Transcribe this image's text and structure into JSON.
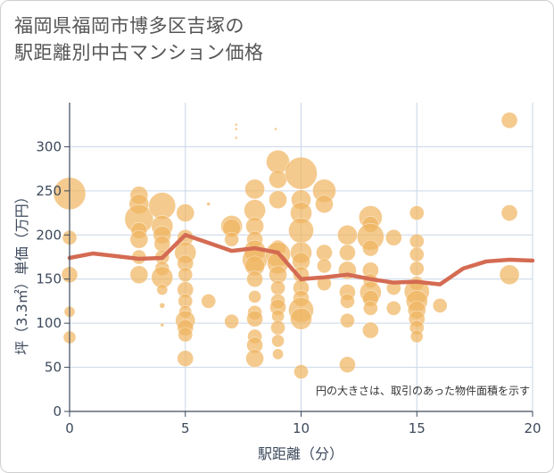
{
  "title_line1": "福岡県福岡市博多区吉塚の",
  "title_line2": "駅距離別中古マンション価格",
  "chart_data": {
    "type": "scatter",
    "xlabel": "駅距離（分）",
    "ylabel": "坪（3.3㎡）単価（万円）",
    "note": "円の大きさは、取引のあった物件面積を示す",
    "xlim": [
      0,
      20
    ],
    "ylim": [
      0,
      350
    ],
    "xticks": [
      0,
      5,
      10,
      15,
      20
    ],
    "yticks": [
      0,
      50,
      100,
      150,
      200,
      250,
      300
    ],
    "grid": true,
    "colors": {
      "bubble": "#f0b562",
      "line": "#d46b52",
      "grid": "#c9d6e6",
      "axis": "#3d4a5c"
    },
    "line": {
      "name": "",
      "x": [
        0,
        1,
        2,
        3,
        4,
        5,
        6,
        7,
        8,
        9,
        10,
        11,
        12,
        13,
        14,
        15,
        16,
        17,
        18,
        19,
        20
      ],
      "y": [
        174,
        179,
        176,
        173,
        174,
        200,
        191,
        182,
        185,
        180,
        150,
        152,
        155,
        150,
        146,
        147,
        144,
        162,
        170,
        172,
        171
      ]
    },
    "points": [
      {
        "x": 0,
        "y": 247,
        "s": 18
      },
      {
        "x": 0,
        "y": 197,
        "s": 8
      },
      {
        "x": 0,
        "y": 155,
        "s": 9
      },
      {
        "x": 0,
        "y": 113,
        "s": 6
      },
      {
        "x": 0,
        "y": 84,
        "s": 7
      },
      {
        "x": 3,
        "y": 245,
        "s": 10
      },
      {
        "x": 3,
        "y": 235,
        "s": 11
      },
      {
        "x": 3,
        "y": 218,
        "s": 16
      },
      {
        "x": 3,
        "y": 205,
        "s": 9
      },
      {
        "x": 3,
        "y": 195,
        "s": 10
      },
      {
        "x": 3,
        "y": 175,
        "s": 8
      },
      {
        "x": 3,
        "y": 155,
        "s": 10
      },
      {
        "x": 4,
        "y": 233,
        "s": 15
      },
      {
        "x": 4,
        "y": 210,
        "s": 12
      },
      {
        "x": 4,
        "y": 200,
        "s": 10
      },
      {
        "x": 4,
        "y": 190,
        "s": 9
      },
      {
        "x": 4,
        "y": 175,
        "s": 8
      },
      {
        "x": 4,
        "y": 162,
        "s": 8
      },
      {
        "x": 4,
        "y": 152,
        "s": 12
      },
      {
        "x": 4,
        "y": 138,
        "s": 6
      },
      {
        "x": 4,
        "y": 120,
        "s": 3
      },
      {
        "x": 4,
        "y": 98,
        "s": 2
      },
      {
        "x": 5,
        "y": 225,
        "s": 10
      },
      {
        "x": 5,
        "y": 197,
        "s": 9
      },
      {
        "x": 5,
        "y": 180,
        "s": 12
      },
      {
        "x": 5,
        "y": 168,
        "s": 9
      },
      {
        "x": 5,
        "y": 155,
        "s": 8
      },
      {
        "x": 5,
        "y": 138,
        "s": 9
      },
      {
        "x": 5,
        "y": 125,
        "s": 8
      },
      {
        "x": 5,
        "y": 113,
        "s": 7
      },
      {
        "x": 5,
        "y": 103,
        "s": 11
      },
      {
        "x": 5,
        "y": 95,
        "s": 9
      },
      {
        "x": 5,
        "y": 87,
        "s": 8
      },
      {
        "x": 5,
        "y": 60,
        "s": 9
      },
      {
        "x": 6,
        "y": 125,
        "s": 8
      },
      {
        "x": 6,
        "y": 235,
        "s": 2
      },
      {
        "x": 7,
        "y": 210,
        "s": 12
      },
      {
        "x": 7,
        "y": 208,
        "s": 10
      },
      {
        "x": 7,
        "y": 195,
        "s": 8
      },
      {
        "x": 7,
        "y": 102,
        "s": 8
      },
      {
        "x": 7.2,
        "y": 325,
        "s": 1.5
      },
      {
        "x": 7.2,
        "y": 320,
        "s": 1.5
      },
      {
        "x": 7.2,
        "y": 310,
        "s": 1.5
      },
      {
        "x": 8,
        "y": 252,
        "s": 11
      },
      {
        "x": 8,
        "y": 228,
        "s": 12
      },
      {
        "x": 8,
        "y": 210,
        "s": 10
      },
      {
        "x": 8,
        "y": 195,
        "s": 9
      },
      {
        "x": 8,
        "y": 182,
        "s": 12
      },
      {
        "x": 8,
        "y": 172,
        "s": 14
      },
      {
        "x": 8,
        "y": 165,
        "s": 11
      },
      {
        "x": 8,
        "y": 150,
        "s": 9
      },
      {
        "x": 8,
        "y": 130,
        "s": 7
      },
      {
        "x": 8,
        "y": 112,
        "s": 8
      },
      {
        "x": 8,
        "y": 105,
        "s": 9
      },
      {
        "x": 8,
        "y": 85,
        "s": 8
      },
      {
        "x": 8,
        "y": 75,
        "s": 9
      },
      {
        "x": 8,
        "y": 60,
        "s": 10
      },
      {
        "x": 9,
        "y": 283,
        "s": 13
      },
      {
        "x": 9,
        "y": 263,
        "s": 10
      },
      {
        "x": 9,
        "y": 240,
        "s": 10
      },
      {
        "x": 9,
        "y": 185,
        "s": 9
      },
      {
        "x": 9,
        "y": 178,
        "s": 14
      },
      {
        "x": 9,
        "y": 168,
        "s": 12
      },
      {
        "x": 9,
        "y": 155,
        "s": 10
      },
      {
        "x": 9,
        "y": 140,
        "s": 8
      },
      {
        "x": 9,
        "y": 125,
        "s": 8
      },
      {
        "x": 9,
        "y": 118,
        "s": 9
      },
      {
        "x": 9,
        "y": 108,
        "s": 7
      },
      {
        "x": 9,
        "y": 95,
        "s": 8
      },
      {
        "x": 9,
        "y": 80,
        "s": 7
      },
      {
        "x": 9,
        "y": 65,
        "s": 6
      },
      {
        "x": 8.9,
        "y": 320,
        "s": 1.5
      },
      {
        "x": 10,
        "y": 270,
        "s": 18
      },
      {
        "x": 10,
        "y": 240,
        "s": 11
      },
      {
        "x": 10,
        "y": 225,
        "s": 12
      },
      {
        "x": 10,
        "y": 205,
        "s": 14
      },
      {
        "x": 10,
        "y": 180,
        "s": 12
      },
      {
        "x": 10,
        "y": 170,
        "s": 10
      },
      {
        "x": 10,
        "y": 155,
        "s": 9
      },
      {
        "x": 10,
        "y": 140,
        "s": 9
      },
      {
        "x": 10,
        "y": 128,
        "s": 9
      },
      {
        "x": 10,
        "y": 115,
        "s": 14
      },
      {
        "x": 10,
        "y": 105,
        "s": 12
      },
      {
        "x": 10,
        "y": 45,
        "s": 8
      },
      {
        "x": 11,
        "y": 250,
        "s": 13
      },
      {
        "x": 11,
        "y": 235,
        "s": 10
      },
      {
        "x": 11,
        "y": 180,
        "s": 9
      },
      {
        "x": 11,
        "y": 165,
        "s": 8
      },
      {
        "x": 11,
        "y": 145,
        "s": 8
      },
      {
        "x": 12,
        "y": 200,
        "s": 11
      },
      {
        "x": 12,
        "y": 180,
        "s": 9
      },
      {
        "x": 12,
        "y": 160,
        "s": 10
      },
      {
        "x": 12,
        "y": 135,
        "s": 9
      },
      {
        "x": 12,
        "y": 125,
        "s": 8
      },
      {
        "x": 12,
        "y": 103,
        "s": 8
      },
      {
        "x": 12,
        "y": 53,
        "s": 9
      },
      {
        "x": 13,
        "y": 220,
        "s": 13
      },
      {
        "x": 13,
        "y": 212,
        "s": 9
      },
      {
        "x": 13,
        "y": 198,
        "s": 15
      },
      {
        "x": 13,
        "y": 185,
        "s": 9
      },
      {
        "x": 13,
        "y": 160,
        "s": 9
      },
      {
        "x": 13,
        "y": 148,
        "s": 8
      },
      {
        "x": 13,
        "y": 135,
        "s": 12
      },
      {
        "x": 13,
        "y": 128,
        "s": 9
      },
      {
        "x": 13,
        "y": 117,
        "s": 8
      },
      {
        "x": 13,
        "y": 92,
        "s": 9
      },
      {
        "x": 14,
        "y": 197,
        "s": 9
      },
      {
        "x": 14,
        "y": 140,
        "s": 8
      },
      {
        "x": 14,
        "y": 117,
        "s": 8
      },
      {
        "x": 15,
        "y": 225,
        "s": 8
      },
      {
        "x": 15,
        "y": 193,
        "s": 8
      },
      {
        "x": 15,
        "y": 178,
        "s": 8
      },
      {
        "x": 15,
        "y": 162,
        "s": 8
      },
      {
        "x": 15,
        "y": 145,
        "s": 8
      },
      {
        "x": 15,
        "y": 136,
        "s": 14
      },
      {
        "x": 15,
        "y": 125,
        "s": 12
      },
      {
        "x": 15,
        "y": 115,
        "s": 10
      },
      {
        "x": 15,
        "y": 105,
        "s": 9
      },
      {
        "x": 15,
        "y": 95,
        "s": 8
      },
      {
        "x": 15,
        "y": 85,
        "s": 7
      },
      {
        "x": 16,
        "y": 120,
        "s": 8
      },
      {
        "x": 19,
        "y": 330,
        "s": 9
      },
      {
        "x": 19,
        "y": 225,
        "s": 9
      },
      {
        "x": 19,
        "y": 155,
        "s": 11
      }
    ]
  }
}
